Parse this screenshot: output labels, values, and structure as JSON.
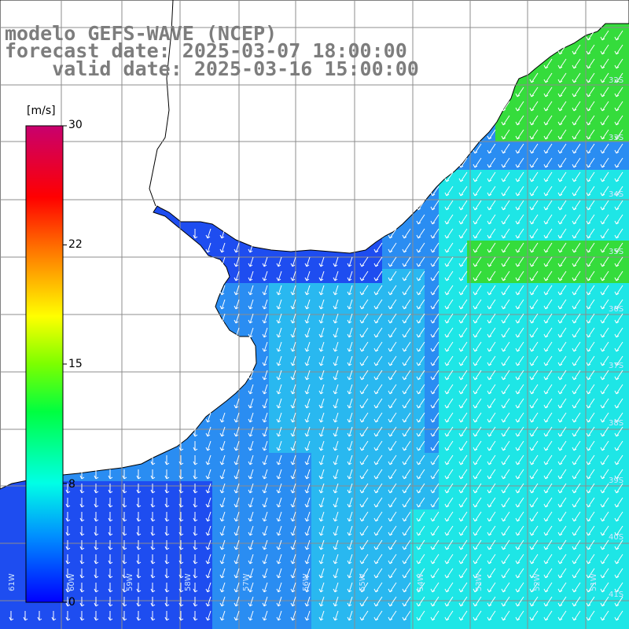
{
  "title": {
    "line1": "modelo GEFS-WAVE (NCEP)",
    "line2": "forecast date: 2025-03-07 18:00:00",
    "line3": "    valid date: 2025-03-16 15:00:00"
  },
  "colorbar": {
    "unit": "[m/s]",
    "min": 0,
    "max": 30,
    "tick_labels": [
      "30",
      "22",
      "15",
      "8",
      "0"
    ],
    "tick_values": [
      30,
      22.5,
      15,
      7.5,
      0
    ]
  },
  "axes": {
    "lon_labels": [
      "61W",
      "60W",
      "59W",
      "58W",
      "57W",
      "56W",
      "55W",
      "54W",
      "53W",
      "52W",
      "51W"
    ],
    "lat_labels": [
      "32S",
      "33S",
      "34S",
      "35S",
      "36S",
      "37S",
      "38S",
      "39S",
      "40S",
      "41S"
    ]
  },
  "chart_data": {
    "type": "heatmap",
    "title": "modelo GEFS-WAVE (NCEP)",
    "variable_unit": "m/s",
    "color_scale": "rainbow",
    "value_range": [
      0,
      30
    ],
    "field_description": "wind speed with direction arrows, mostly from the north-east",
    "colors": {
      "blue": "#1e4df0",
      "light_blue": "#29b8f0",
      "cyan": "#1ee6e6",
      "green": "#35dc3c",
      "land": "#ffffff",
      "grid": "#8c8c8c",
      "coast": "#000000"
    }
  }
}
